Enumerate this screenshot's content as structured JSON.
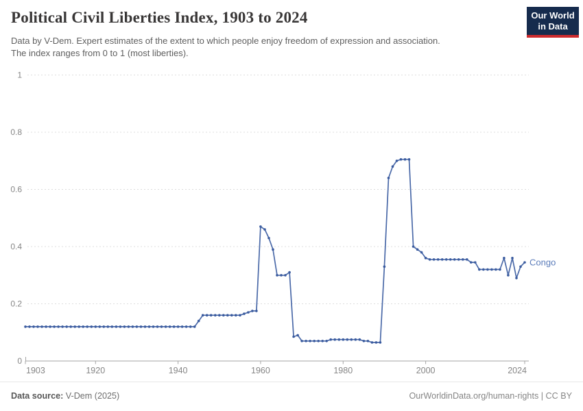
{
  "page": {
    "title": "Political Civil Liberties Index, 1903 to 2024",
    "subtitle_line1": "Data by V-Dem. Expert estimates of the extent to which people enjoy freedom of expression and association.",
    "subtitle_line2": "The index ranges from 0 to 1 (most liberties).",
    "logo": {
      "line1": "Our World",
      "line2": "in Data"
    }
  },
  "footer": {
    "source_label": "Data source:",
    "source_value": " V-Dem (2025)",
    "right_text": "OurWorldinData.org/human-rights | CC BY"
  },
  "colors": {
    "line": "#4a69a8",
    "point": "#3a5b9f",
    "series_label": "#5b7cba",
    "grid": "#dcdcdc",
    "axis": "#a3a3a3",
    "axis_text": "#858585",
    "logo_bg": "#162b4d",
    "logo_red": "#cd2a2d"
  },
  "chart_data": {
    "type": "line",
    "title": "Political Civil Liberties Index, 1903 to 2024",
    "xlabel": "",
    "ylabel": "",
    "ylim": [
      0,
      1
    ],
    "yticks": [
      0,
      0.2,
      0.4,
      0.6,
      0.8,
      1
    ],
    "ytick_labels": [
      "0",
      "0.2",
      "0.4",
      "0.6",
      "0.8",
      "1"
    ],
    "xticks": [
      1903,
      1920,
      1940,
      1960,
      1980,
      2000,
      2024
    ],
    "grid": true,
    "legend_position": "end-of-line-label",
    "year_start": 1903,
    "year_end": 2024,
    "series": [
      {
        "name": "Congo",
        "end_label": "Congo",
        "values": [
          0.12,
          0.12,
          0.12,
          0.12,
          0.12,
          0.12,
          0.12,
          0.12,
          0.12,
          0.12,
          0.12,
          0.12,
          0.12,
          0.12,
          0.12,
          0.12,
          0.12,
          0.12,
          0.12,
          0.12,
          0.12,
          0.12,
          0.12,
          0.12,
          0.12,
          0.12,
          0.12,
          0.12,
          0.12,
          0.12,
          0.12,
          0.12,
          0.12,
          0.12,
          0.12,
          0.12,
          0.12,
          0.12,
          0.12,
          0.12,
          0.12,
          0.12,
          0.14,
          0.16,
          0.16,
          0.16,
          0.16,
          0.16,
          0.16,
          0.16,
          0.16,
          0.16,
          0.16,
          0.165,
          0.17,
          0.175,
          0.175,
          0.47,
          0.46,
          0.43,
          0.39,
          0.3,
          0.3,
          0.3,
          0.31,
          0.085,
          0.09,
          0.07,
          0.07,
          0.07,
          0.07,
          0.07,
          0.07,
          0.07,
          0.075,
          0.075,
          0.075,
          0.075,
          0.075,
          0.075,
          0.075,
          0.075,
          0.07,
          0.07,
          0.065,
          0.065,
          0.065,
          0.33,
          0.64,
          0.68,
          0.7,
          0.705,
          0.705,
          0.705,
          0.4,
          0.39,
          0.38,
          0.36,
          0.355,
          0.355,
          0.355,
          0.355,
          0.355,
          0.355,
          0.355,
          0.355,
          0.355,
          0.355,
          0.345,
          0.345,
          0.32,
          0.32,
          0.32,
          0.32,
          0.32,
          0.32,
          0.36,
          0.3,
          0.36,
          0.29,
          0.33,
          0.345
        ]
      }
    ]
  }
}
